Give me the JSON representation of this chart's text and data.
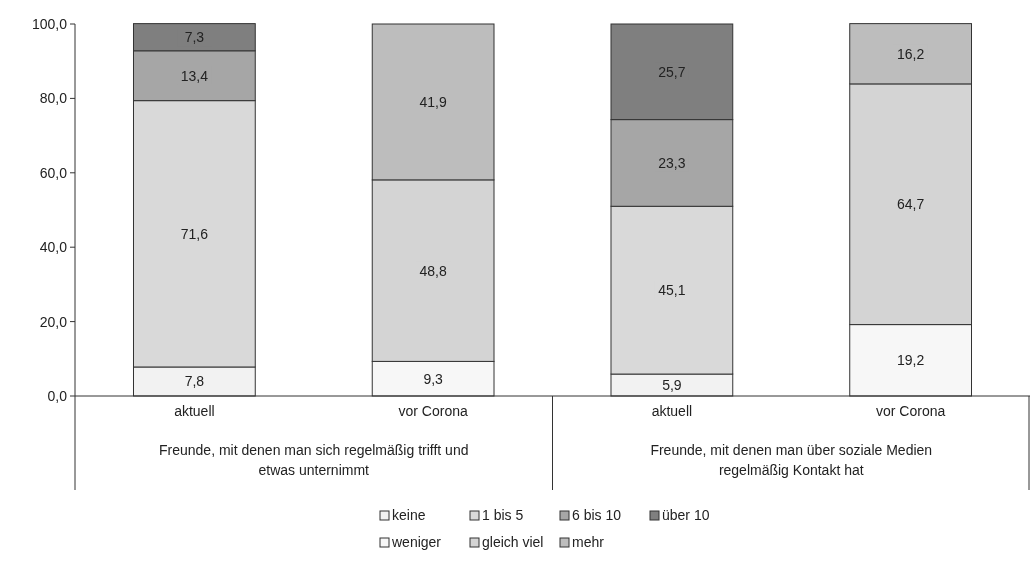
{
  "chart_data": {
    "type": "bar",
    "stacked": true,
    "categories": [
      "aktuell",
      "vor Corona",
      "aktuell",
      "vor Corona"
    ],
    "series": [
      {
        "name": "keine",
        "color": "#f2f2f2",
        "values": [
          7.8,
          null,
          5.9,
          null
        ],
        "value_labels": [
          "7,8",
          null,
          "5,9",
          null
        ]
      },
      {
        "name": "1 bis 5",
        "color": "#d9d9d9",
        "values": [
          71.6,
          null,
          45.1,
          null
        ],
        "value_labels": [
          "71,6",
          null,
          "45,1",
          null
        ]
      },
      {
        "name": "6 bis 10",
        "color": "#a6a6a6",
        "values": [
          13.4,
          null,
          23.3,
          null
        ],
        "value_labels": [
          "13,4",
          null,
          "23,3",
          null
        ]
      },
      {
        "name": "über 10",
        "color": "#7f7f7f",
        "values": [
          7.3,
          null,
          25.7,
          null
        ],
        "value_labels": [
          "7,3",
          null,
          "25,7",
          null
        ]
      },
      {
        "name": "weniger",
        "color": "#f7f7f7",
        "values": [
          null,
          9.3,
          null,
          19.2
        ],
        "value_labels": [
          null,
          "9,3",
          null,
          "19,2"
        ]
      },
      {
        "name": "gleich viel",
        "color": "#d4d4d4",
        "values": [
          null,
          48.8,
          null,
          64.7
        ],
        "value_labels": [
          null,
          "48,8",
          null,
          "64,7"
        ]
      },
      {
        "name": "mehr",
        "color": "#bdbdbd",
        "values": [
          null,
          41.9,
          null,
          16.2
        ],
        "value_labels": [
          null,
          "41,9",
          null,
          "16,2"
        ]
      }
    ],
    "ylim": [
      0,
      100
    ],
    "yticks": [
      {
        "value": 0,
        "label": "0,0"
      },
      {
        "value": 20,
        "label": "20,0"
      },
      {
        "value": 40,
        "label": "40,0"
      },
      {
        "value": 60,
        "label": "60,0"
      },
      {
        "value": 80,
        "label": "80,0"
      },
      {
        "value": 100,
        "label": "100,0"
      }
    ],
    "legend": "bottom",
    "annotations": [
      "Freunde, mit denen man sich regelmäßig trifft und etwas unternimmt",
      "Freunde, mit denen man über soziale Medien regelmäßig Kontakt hat"
    ]
  }
}
